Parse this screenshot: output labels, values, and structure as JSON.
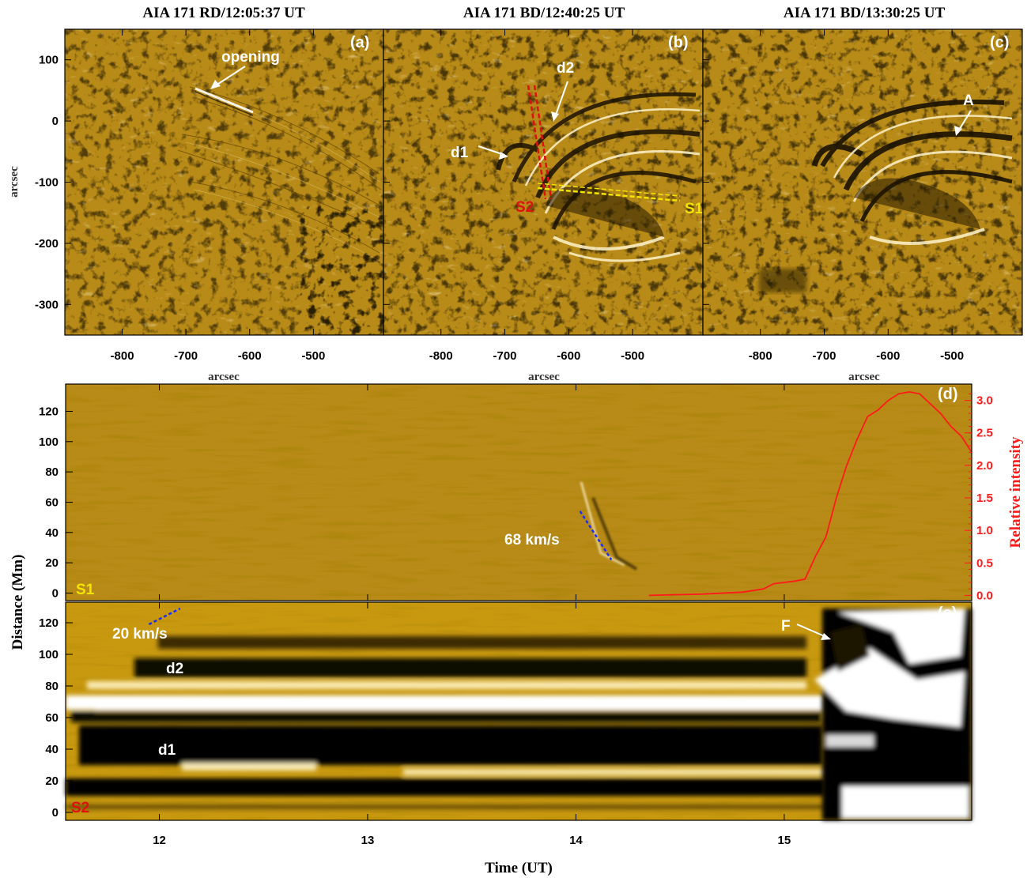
{
  "panels_top": [
    {
      "title": "AIA 171 RD/12:05:37 UT",
      "letter": "(a)"
    },
    {
      "title": "AIA 171 BD/12:40:25 UT",
      "letter": "(b)"
    },
    {
      "title": "AIA 171 BD/13:30:25 UT",
      "letter": "(c)"
    }
  ],
  "labels": {
    "arcsec": "arcsec",
    "distance": "Distance (Mm)",
    "time": "Time (UT)",
    "relint": "Relative intensity",
    "letter_d": "(d)",
    "letter_e": "(e)"
  },
  "annotations": {
    "opening": "opening",
    "d1": "d1",
    "d2": "d2",
    "A": "A",
    "S1": "S1",
    "S2": "S2",
    "v68": "68 km/s",
    "v20": "20 km/s",
    "F": "F"
  },
  "colors": {
    "map_base": "#b88a17",
    "curve": "#ff1a1a",
    "slit_s1": "#f2e600",
    "slit_s2": "#e01010",
    "fit_line": "#1a2cff"
  },
  "chart_data": [
    {
      "type": "heatmap",
      "panel": "a-c",
      "xlabel": "arcsec",
      "ylabel": "arcsec",
      "xlim": [
        -890,
        -390
      ],
      "ylim": [
        -350,
        150
      ],
      "xticks": [
        -800,
        -700,
        -600,
        -500
      ],
      "yticks": [
        100,
        0,
        -100,
        -200,
        -300
      ]
    },
    {
      "type": "line",
      "panel": "d",
      "x_unit": "hours UT",
      "xlim": [
        11.55,
        15.9
      ],
      "y_left": {
        "label": "Distance (Mm)",
        "lim": [
          -5,
          138
        ],
        "ticks": [
          0,
          20,
          40,
          60,
          80,
          100,
          120
        ]
      },
      "y_right": {
        "label": "Relative intensity",
        "lim": [
          -0.08,
          3.25
        ],
        "ticks": [
          0.0,
          0.5,
          1.0,
          1.5,
          2.0,
          2.5,
          3.0
        ]
      },
      "series": [
        {
          "x": [
            14.35,
            14.6,
            14.8,
            14.9,
            14.95,
            15.0,
            15.05,
            15.1,
            15.15,
            15.2,
            15.25,
            15.3,
            15.35,
            15.4,
            15.45,
            15.5,
            15.55,
            15.6,
            15.65,
            15.7,
            15.75,
            15.8,
            15.85,
            15.9
          ],
          "y": [
            0.0,
            0.02,
            0.05,
            0.1,
            0.18,
            0.2,
            0.22,
            0.25,
            0.6,
            0.9,
            1.5,
            2.0,
            2.4,
            2.75,
            2.85,
            3.0,
            3.1,
            3.13,
            3.1,
            2.95,
            2.8,
            2.6,
            2.45,
            2.2
          ]
        }
      ],
      "fit": {
        "label": "68 km/s",
        "x": [
          14.02,
          14.17
        ],
        "y": [
          54,
          22
        ]
      }
    },
    {
      "type": "heatmap",
      "panel": "e",
      "xlabel": "Time (UT)",
      "xticks": [
        12,
        13,
        14,
        15
      ],
      "xlim": [
        11.55,
        15.9
      ],
      "ylim": [
        -5,
        133
      ],
      "yticks": [
        0,
        20,
        40,
        60,
        80,
        100,
        120
      ],
      "fit": {
        "label": "20 km/s",
        "x": [
          11.95,
          12.1
        ],
        "y": [
          119,
          129
        ]
      }
    }
  ]
}
